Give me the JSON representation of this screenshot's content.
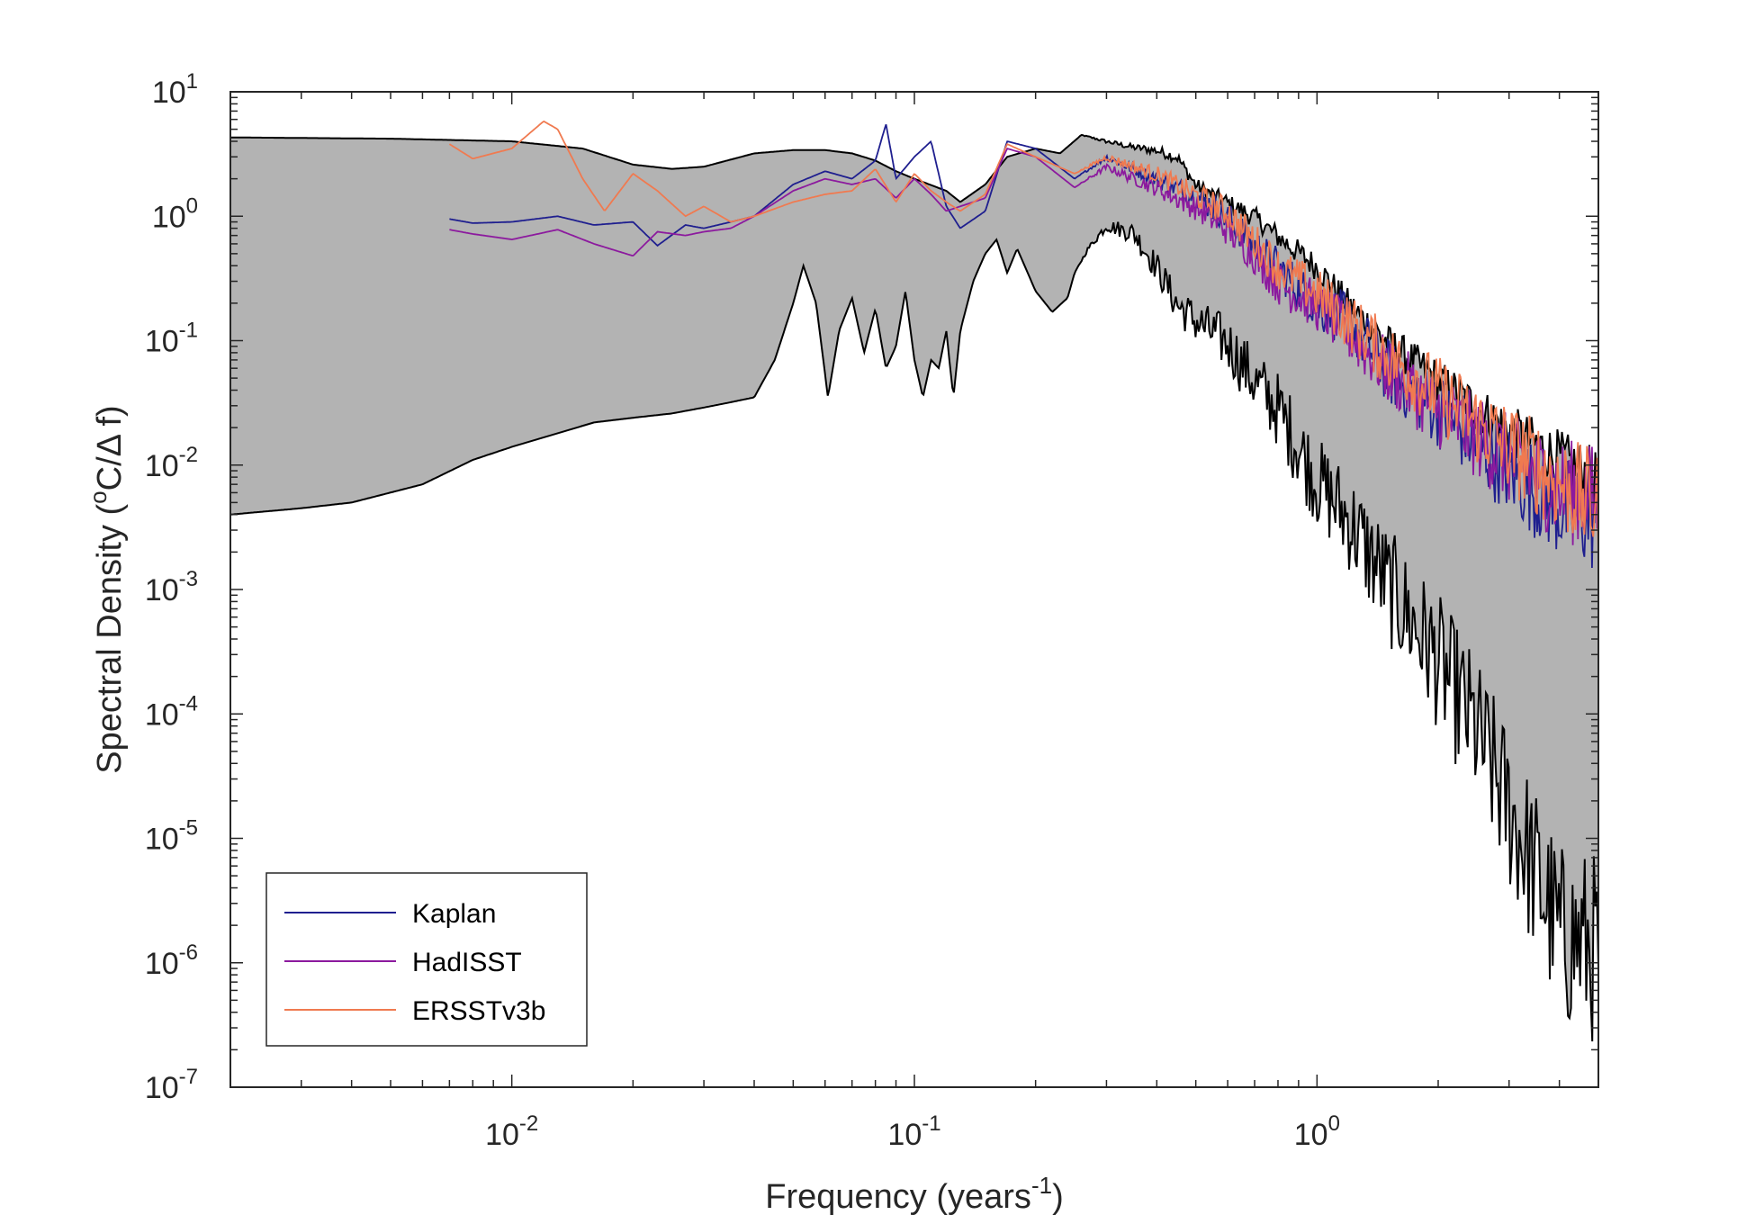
{
  "chart_data": {
    "type": "line",
    "title": "",
    "xlabel": "Frequency (years",
    "xlabel_sup": "-1",
    "xlabel_end": ")",
    "ylabel_pre": "Spectral Density (",
    "ylabel_sup": "o",
    "ylabel_post": "C/Δ f)",
    "xscale": "log",
    "yscale": "log",
    "xlim": [
      0.002,
      5
    ],
    "ylim": [
      1e-07,
      10
    ],
    "grid": false,
    "legend_position": "bottom-left",
    "x_ticks": [
      {
        "base": "10",
        "exp": "-2"
      },
      {
        "base": "10",
        "exp": "-1"
      },
      {
        "base": "10",
        "exp": "0"
      }
    ],
    "y_ticks": [
      {
        "base": "10",
        "exp": "-7"
      },
      {
        "base": "10",
        "exp": "-6"
      },
      {
        "base": "10",
        "exp": "-5"
      },
      {
        "base": "10",
        "exp": "-4"
      },
      {
        "base": "10",
        "exp": "-3"
      },
      {
        "base": "10",
        "exp": "-2"
      },
      {
        "base": "10",
        "exp": "-1"
      },
      {
        "base": "10",
        "exp": "0"
      },
      {
        "base": "10",
        "exp": "1"
      }
    ],
    "envelope": {
      "fill_color": "#b3b3b3",
      "edge_color": "#000000",
      "upper": [
        [
          0.002,
          4.3
        ],
        [
          0.005,
          4.2
        ],
        [
          0.01,
          4.0
        ],
        [
          0.015,
          3.5
        ],
        [
          0.02,
          2.6
        ],
        [
          0.025,
          2.4
        ],
        [
          0.03,
          2.5
        ],
        [
          0.04,
          3.2
        ],
        [
          0.05,
          3.4
        ],
        [
          0.06,
          3.4
        ],
        [
          0.07,
          3.2
        ],
        [
          0.08,
          2.8
        ],
        [
          0.09,
          2.3
        ],
        [
          0.1,
          2.0
        ],
        [
          0.12,
          1.6
        ],
        [
          0.13,
          1.3
        ],
        [
          0.15,
          1.8
        ],
        [
          0.17,
          3.0
        ],
        [
          0.2,
          3.5
        ],
        [
          0.23,
          3.2
        ],
        [
          0.26,
          4.5
        ],
        [
          0.3,
          4.0
        ],
        [
          0.35,
          3.6
        ],
        [
          0.4,
          3.4
        ],
        [
          0.45,
          3.0
        ],
        [
          0.5,
          1.8
        ],
        [
          0.6,
          1.3
        ],
        [
          0.7,
          1.0
        ],
        [
          0.8,
          0.7
        ],
        [
          1.0,
          0.4
        ],
        [
          1.2,
          0.2
        ],
        [
          1.5,
          0.1
        ],
        [
          2.0,
          0.05
        ],
        [
          3.0,
          0.02
        ],
        [
          4.0,
          0.012
        ],
        [
          5.0,
          0.008
        ]
      ],
      "lower": [
        [
          0.002,
          0.004
        ],
        [
          0.003,
          0.0045
        ],
        [
          0.004,
          0.005
        ],
        [
          0.006,
          0.007
        ],
        [
          0.008,
          0.011
        ],
        [
          0.01,
          0.014
        ],
        [
          0.013,
          0.018
        ],
        [
          0.016,
          0.022
        ],
        [
          0.02,
          0.024
        ],
        [
          0.025,
          0.026
        ],
        [
          0.03,
          0.029
        ],
        [
          0.035,
          0.032
        ],
        [
          0.04,
          0.035
        ],
        [
          0.045,
          0.07
        ],
        [
          0.05,
          0.2
        ],
        [
          0.053,
          0.4
        ],
        [
          0.057,
          0.2
        ],
        [
          0.061,
          0.035
        ],
        [
          0.065,
          0.12
        ],
        [
          0.07,
          0.22
        ],
        [
          0.075,
          0.08
        ],
        [
          0.08,
          0.18
        ],
        [
          0.085,
          0.06
        ],
        [
          0.09,
          0.09
        ],
        [
          0.095,
          0.25
        ],
        [
          0.1,
          0.07
        ],
        [
          0.105,
          0.035
        ],
        [
          0.11,
          0.07
        ],
        [
          0.115,
          0.06
        ],
        [
          0.12,
          0.12
        ],
        [
          0.125,
          0.035
        ],
        [
          0.13,
          0.12
        ],
        [
          0.14,
          0.3
        ],
        [
          0.15,
          0.5
        ],
        [
          0.16,
          0.65
        ],
        [
          0.17,
          0.35
        ],
        [
          0.18,
          0.55
        ],
        [
          0.2,
          0.25
        ],
        [
          0.22,
          0.17
        ],
        [
          0.24,
          0.22
        ],
        [
          0.25,
          0.35
        ],
        [
          0.27,
          0.55
        ],
        [
          0.3,
          0.85
        ],
        [
          0.35,
          0.75
        ],
        [
          0.4,
          0.4
        ],
        [
          0.45,
          0.2
        ],
        [
          0.5,
          0.15
        ],
        [
          0.6,
          0.1
        ],
        [
          0.7,
          0.05
        ],
        [
          0.8,
          0.03
        ],
        [
          0.9,
          0.015
        ],
        [
          1.0,
          0.008
        ],
        [
          1.2,
          0.004
        ],
        [
          1.5,
          0.0012
        ],
        [
          2.0,
          0.0003
        ],
        [
          2.5,
          8e-05
        ],
        [
          3.0,
          2e-05
        ],
        [
          3.5,
          6e-06
        ],
        [
          4.0,
          2e-06
        ],
        [
          5.0,
          1.5e-06
        ]
      ]
    },
    "series": [
      {
        "name": "Kaplan",
        "color": "#1f1f8f",
        "points": [
          [
            0.007,
            0.95
          ],
          [
            0.008,
            0.88
          ],
          [
            0.01,
            0.9
          ],
          [
            0.013,
            1.0
          ],
          [
            0.016,
            0.85
          ],
          [
            0.02,
            0.9
          ],
          [
            0.023,
            0.58
          ],
          [
            0.027,
            0.85
          ],
          [
            0.03,
            0.8
          ],
          [
            0.035,
            0.9
          ],
          [
            0.04,
            1.0
          ],
          [
            0.05,
            1.8
          ],
          [
            0.06,
            2.3
          ],
          [
            0.07,
            2.0
          ],
          [
            0.08,
            2.8
          ],
          [
            0.085,
            5.5
          ],
          [
            0.09,
            2.0
          ],
          [
            0.1,
            3.0
          ],
          [
            0.11,
            4.0
          ],
          [
            0.12,
            1.2
          ],
          [
            0.13,
            0.8
          ],
          [
            0.15,
            1.1
          ],
          [
            0.17,
            4.0
          ],
          [
            0.2,
            3.5
          ],
          [
            0.25,
            2.0
          ],
          [
            0.3,
            3.0
          ],
          [
            0.4,
            2.0
          ],
          [
            0.5,
            1.5
          ],
          [
            0.6,
            1.0
          ],
          [
            0.7,
            0.6
          ],
          [
            0.8,
            0.4
          ],
          [
            1.0,
            0.2
          ],
          [
            1.2,
            0.15
          ],
          [
            1.5,
            0.06
          ],
          [
            2.0,
            0.03
          ],
          [
            3.0,
            0.01
          ],
          [
            4.0,
            0.005
          ],
          [
            5.0,
            0.004
          ]
        ]
      },
      {
        "name": "HadISST",
        "color": "#8c1a9e",
        "points": [
          [
            0.007,
            0.78
          ],
          [
            0.008,
            0.72
          ],
          [
            0.01,
            0.65
          ],
          [
            0.013,
            0.78
          ],
          [
            0.016,
            0.6
          ],
          [
            0.02,
            0.48
          ],
          [
            0.023,
            0.75
          ],
          [
            0.027,
            0.7
          ],
          [
            0.03,
            0.75
          ],
          [
            0.035,
            0.8
          ],
          [
            0.04,
            1.0
          ],
          [
            0.05,
            1.6
          ],
          [
            0.06,
            2.0
          ],
          [
            0.07,
            1.8
          ],
          [
            0.08,
            2.0
          ],
          [
            0.09,
            1.4
          ],
          [
            0.1,
            2.0
          ],
          [
            0.11,
            1.5
          ],
          [
            0.12,
            1.1
          ],
          [
            0.13,
            1.2
          ],
          [
            0.15,
            1.4
          ],
          [
            0.17,
            3.5
          ],
          [
            0.2,
            3.0
          ],
          [
            0.25,
            1.7
          ],
          [
            0.3,
            2.5
          ],
          [
            0.4,
            1.7
          ],
          [
            0.5,
            1.2
          ],
          [
            0.6,
            0.8
          ],
          [
            0.7,
            0.5
          ],
          [
            0.8,
            0.3
          ],
          [
            1.0,
            0.2
          ],
          [
            1.2,
            0.12
          ],
          [
            1.5,
            0.06
          ],
          [
            2.0,
            0.03
          ],
          [
            3.0,
            0.012
          ],
          [
            4.0,
            0.007
          ],
          [
            5.0,
            0.006
          ]
        ]
      },
      {
        "name": "ERSSTv3b",
        "color": "#f07a50",
        "points": [
          [
            0.007,
            3.8
          ],
          [
            0.008,
            2.9
          ],
          [
            0.01,
            3.5
          ],
          [
            0.012,
            5.8
          ],
          [
            0.013,
            5.0
          ],
          [
            0.015,
            2.0
          ],
          [
            0.017,
            1.1
          ],
          [
            0.02,
            2.2
          ],
          [
            0.023,
            1.6
          ],
          [
            0.027,
            1.0
          ],
          [
            0.03,
            1.2
          ],
          [
            0.035,
            0.9
          ],
          [
            0.04,
            1.0
          ],
          [
            0.05,
            1.3
          ],
          [
            0.06,
            1.5
          ],
          [
            0.07,
            1.6
          ],
          [
            0.08,
            2.4
          ],
          [
            0.09,
            1.3
          ],
          [
            0.1,
            2.2
          ],
          [
            0.11,
            1.6
          ],
          [
            0.12,
            1.3
          ],
          [
            0.13,
            1.1
          ],
          [
            0.15,
            1.5
          ],
          [
            0.17,
            3.8
          ],
          [
            0.2,
            3.0
          ],
          [
            0.25,
            2.2
          ],
          [
            0.3,
            3.0
          ],
          [
            0.4,
            2.2
          ],
          [
            0.5,
            1.5
          ],
          [
            0.6,
            1.1
          ],
          [
            0.7,
            0.65
          ],
          [
            0.8,
            0.4
          ],
          [
            1.0,
            0.25
          ],
          [
            1.2,
            0.15
          ],
          [
            1.5,
            0.08
          ],
          [
            2.0,
            0.04
          ],
          [
            3.0,
            0.015
          ],
          [
            4.0,
            0.008
          ],
          [
            5.0,
            0.005
          ]
        ]
      }
    ]
  }
}
